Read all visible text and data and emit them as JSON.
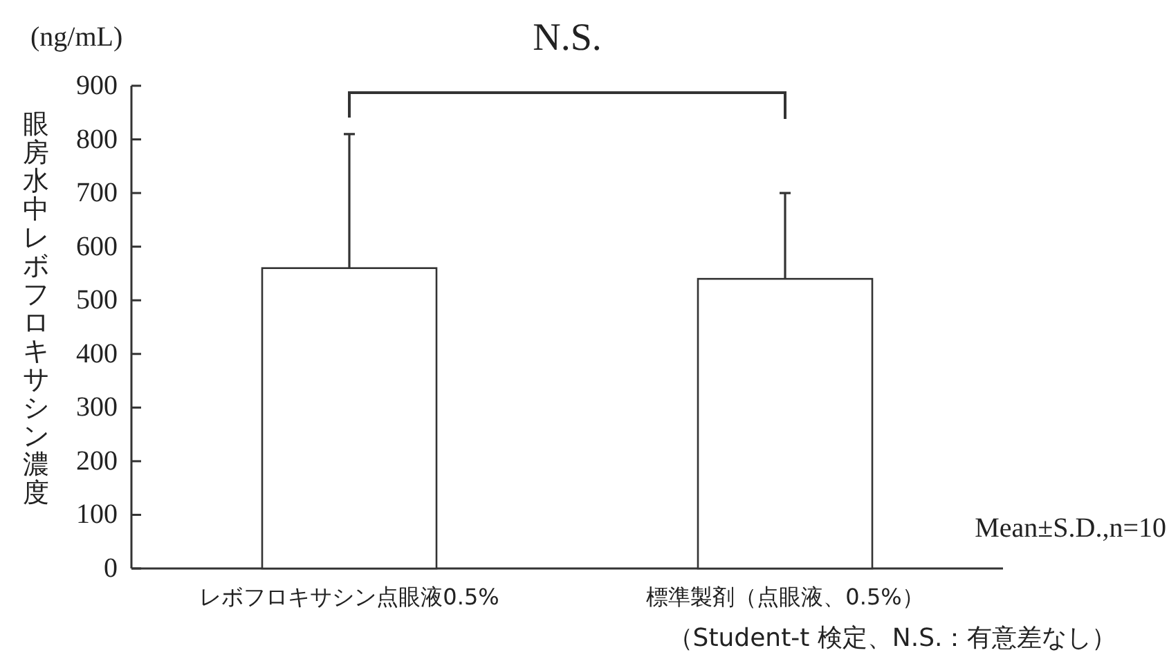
{
  "chart_data": {
    "type": "bar",
    "ylabel": "眼房水中レボフロキサシン濃度",
    "categories": [
      "レボフロキサシン点眼液0.5%",
      "標準製剤（点眼液、0.5%）"
    ],
    "values": [
      560,
      540
    ],
    "errors": [
      250,
      160
    ],
    "color": "#ffffff",
    "ylim": [
      0,
      900
    ],
    "yticks": [
      0,
      100,
      200,
      300,
      400,
      500,
      600,
      700,
      800,
      900
    ],
    "grid": false,
    "annotations": [
      "(ng/mL)",
      "N.S.",
      "Mean±S.D.,n=10",
      "（Student-t 検定、N.S.：有意差なし）"
    ]
  }
}
